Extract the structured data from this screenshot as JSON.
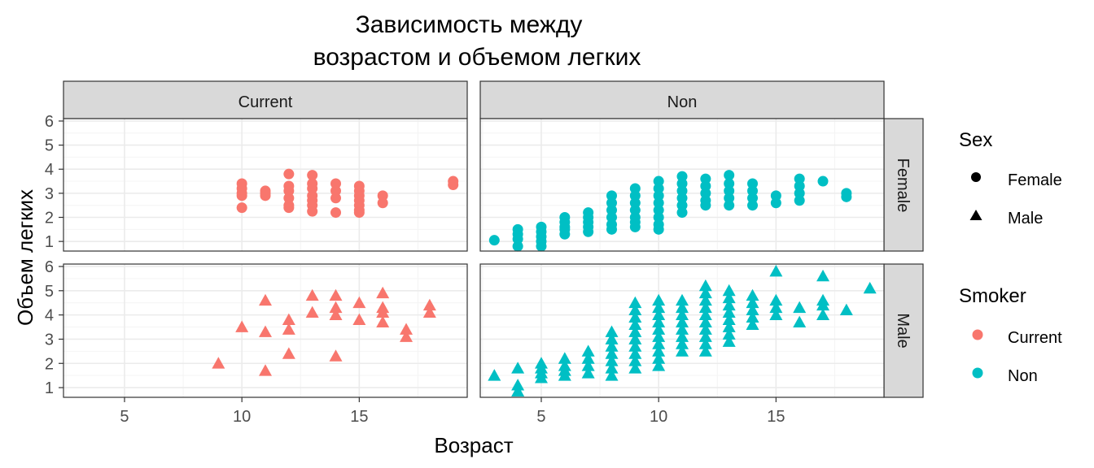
{
  "chart_data": {
    "type": "scatter",
    "title_lines": [
      "Зависимость между",
      "возрастом и объемом легких"
    ],
    "xlabel": "Возраст",
    "ylabel": "Объем легких",
    "xlim": [
      2.4,
      19.6
    ],
    "ylim": [
      0.6,
      6.1
    ],
    "x_ticks": [
      5,
      10,
      15
    ],
    "y_ticks": [
      1,
      2,
      3,
      4,
      5,
      6
    ],
    "grid": true,
    "facet_cols": [
      "Current",
      "Non"
    ],
    "facet_rows": [
      "Female",
      "Male"
    ],
    "legend_position": "right",
    "legends": {
      "sex": {
        "title": "Sex",
        "entries": [
          {
            "label": "Female",
            "shape": "circle"
          },
          {
            "label": "Male",
            "shape": "triangle"
          }
        ]
      },
      "smoker": {
        "title": "Smoker",
        "entries": [
          {
            "label": "Current",
            "color": "#F8766D"
          },
          {
            "label": "Non",
            "color": "#00BFC4"
          }
        ]
      }
    },
    "colors": {
      "Current": "#F8766D",
      "Non": "#00BFC4",
      "strip_bg": "#D9D9D9",
      "panel_border": "#333333",
      "grid_major": "#EBEBEB"
    },
    "series": [
      {
        "smoker": "Current",
        "sex": "Female",
        "points": [
          [
            10,
            3.4
          ],
          [
            10,
            3.2
          ],
          [
            10,
            3.0
          ],
          [
            10,
            2.9
          ],
          [
            10,
            2.4
          ],
          [
            11,
            3.1
          ],
          [
            11,
            3.0
          ],
          [
            11,
            2.9
          ],
          [
            12,
            3.8
          ],
          [
            12,
            3.3
          ],
          [
            12,
            3.1
          ],
          [
            12,
            2.8
          ],
          [
            12,
            2.5
          ],
          [
            12,
            2.4
          ],
          [
            13,
            3.75
          ],
          [
            13,
            3.4
          ],
          [
            13,
            3.2
          ],
          [
            13,
            2.9
          ],
          [
            13,
            2.7
          ],
          [
            13,
            2.5
          ],
          [
            13,
            2.25
          ],
          [
            14,
            3.4
          ],
          [
            14,
            3.1
          ],
          [
            14,
            2.8
          ],
          [
            14,
            2.2
          ],
          [
            15,
            3.3
          ],
          [
            15,
            3.1
          ],
          [
            15,
            2.9
          ],
          [
            15,
            2.7
          ],
          [
            15,
            2.5
          ],
          [
            15,
            2.3
          ],
          [
            15,
            2.2
          ],
          [
            16,
            2.9
          ],
          [
            16,
            2.6
          ],
          [
            19,
            3.5
          ],
          [
            19,
            3.35
          ]
        ]
      },
      {
        "smoker": "Current",
        "sex": "Male",
        "points": [
          [
            9,
            2.0
          ],
          [
            10,
            3.5
          ],
          [
            11,
            4.6
          ],
          [
            11,
            3.3
          ],
          [
            11,
            1.7
          ],
          [
            12,
            3.8
          ],
          [
            12,
            3.4
          ],
          [
            12,
            2.4
          ],
          [
            13,
            4.8
          ],
          [
            13,
            4.1
          ],
          [
            14,
            4.8
          ],
          [
            14,
            4.3
          ],
          [
            14,
            4.0
          ],
          [
            14,
            2.3
          ],
          [
            15,
            4.5
          ],
          [
            15,
            3.8
          ],
          [
            16,
            4.9
          ],
          [
            16,
            4.3
          ],
          [
            16,
            4.1
          ],
          [
            16,
            3.7
          ],
          [
            17,
            3.4
          ],
          [
            17,
            3.1
          ],
          [
            18,
            4.4
          ],
          [
            18,
            4.1
          ]
        ]
      },
      {
        "smoker": "Non",
        "sex": "Female",
        "points": [
          [
            3,
            1.05
          ],
          [
            4,
            1.5
          ],
          [
            4,
            1.3
          ],
          [
            4,
            1.1
          ],
          [
            4,
            0.8
          ],
          [
            5,
            1.6
          ],
          [
            5,
            1.4
          ],
          [
            5,
            1.2
          ],
          [
            5,
            1.0
          ],
          [
            5,
            0.8
          ],
          [
            6,
            2.0
          ],
          [
            6,
            1.8
          ],
          [
            6,
            1.6
          ],
          [
            6,
            1.5
          ],
          [
            6,
            1.3
          ],
          [
            7,
            2.2
          ],
          [
            7,
            2.0
          ],
          [
            7,
            1.8
          ],
          [
            7,
            1.6
          ],
          [
            7,
            1.4
          ],
          [
            8,
            2.9
          ],
          [
            8,
            2.6
          ],
          [
            8,
            2.3
          ],
          [
            8,
            2.0
          ],
          [
            8,
            1.7
          ],
          [
            8,
            1.5
          ],
          [
            9,
            3.2
          ],
          [
            9,
            2.9
          ],
          [
            9,
            2.6
          ],
          [
            9,
            2.3
          ],
          [
            9,
            2.0
          ],
          [
            9,
            1.8
          ],
          [
            9,
            1.6
          ],
          [
            10,
            3.5
          ],
          [
            10,
            3.2
          ],
          [
            10,
            2.9
          ],
          [
            10,
            2.6
          ],
          [
            10,
            2.3
          ],
          [
            10,
            2.0
          ],
          [
            10,
            1.7
          ],
          [
            10,
            1.5
          ],
          [
            11,
            3.7
          ],
          [
            11,
            3.4
          ],
          [
            11,
            3.1
          ],
          [
            11,
            2.8
          ],
          [
            11,
            2.5
          ],
          [
            11,
            2.2
          ],
          [
            12,
            3.6
          ],
          [
            12,
            3.3
          ],
          [
            12,
            3.0
          ],
          [
            12,
            2.7
          ],
          [
            12,
            2.5
          ],
          [
            13,
            3.75
          ],
          [
            13,
            3.4
          ],
          [
            13,
            3.1
          ],
          [
            13,
            2.8
          ],
          [
            13,
            2.5
          ],
          [
            14,
            3.4
          ],
          [
            14,
            3.1
          ],
          [
            14,
            2.8
          ],
          [
            14,
            2.5
          ],
          [
            15,
            2.9
          ],
          [
            15,
            2.6
          ],
          [
            16,
            3.6
          ],
          [
            16,
            3.3
          ],
          [
            16,
            3.0
          ],
          [
            16,
            2.7
          ],
          [
            17,
            3.5
          ],
          [
            18,
            3.0
          ],
          [
            18,
            2.85
          ]
        ]
      },
      {
        "smoker": "Non",
        "sex": "Male",
        "points": [
          [
            3,
            1.5
          ],
          [
            4,
            1.8
          ],
          [
            4,
            1.1
          ],
          [
            4,
            0.85
          ],
          [
            5,
            2.0
          ],
          [
            5,
            1.8
          ],
          [
            5,
            1.6
          ],
          [
            5,
            1.4
          ],
          [
            6,
            2.2
          ],
          [
            6,
            1.9
          ],
          [
            6,
            1.7
          ],
          [
            6,
            1.5
          ],
          [
            7,
            2.5
          ],
          [
            7,
            2.2
          ],
          [
            7,
            1.9
          ],
          [
            7,
            1.6
          ],
          [
            8,
            3.3
          ],
          [
            8,
            3.0
          ],
          [
            8,
            2.7
          ],
          [
            8,
            2.4
          ],
          [
            8,
            2.1
          ],
          [
            8,
            1.8
          ],
          [
            8,
            1.5
          ],
          [
            9,
            4.5
          ],
          [
            9,
            4.2
          ],
          [
            9,
            3.9
          ],
          [
            9,
            3.6
          ],
          [
            9,
            3.3
          ],
          [
            9,
            3.0
          ],
          [
            9,
            2.7
          ],
          [
            9,
            2.4
          ],
          [
            9,
            2.1
          ],
          [
            9,
            1.8
          ],
          [
            10,
            4.6
          ],
          [
            10,
            4.3
          ],
          [
            10,
            4.0
          ],
          [
            10,
            3.7
          ],
          [
            10,
            3.4
          ],
          [
            10,
            3.1
          ],
          [
            10,
            2.8
          ],
          [
            10,
            2.5
          ],
          [
            10,
            2.2
          ],
          [
            10,
            1.9
          ],
          [
            11,
            4.6
          ],
          [
            11,
            4.3
          ],
          [
            11,
            4.0
          ],
          [
            11,
            3.7
          ],
          [
            11,
            3.4
          ],
          [
            11,
            3.1
          ],
          [
            11,
            2.8
          ],
          [
            11,
            2.5
          ],
          [
            12,
            5.2
          ],
          [
            12,
            4.9
          ],
          [
            12,
            4.6
          ],
          [
            12,
            4.3
          ],
          [
            12,
            4.0
          ],
          [
            12,
            3.7
          ],
          [
            12,
            3.4
          ],
          [
            12,
            3.1
          ],
          [
            12,
            2.8
          ],
          [
            12,
            2.5
          ],
          [
            13,
            5.0
          ],
          [
            13,
            4.7
          ],
          [
            13,
            4.4
          ],
          [
            13,
            4.1
          ],
          [
            13,
            3.8
          ],
          [
            13,
            3.5
          ],
          [
            13,
            3.2
          ],
          [
            13,
            2.9
          ],
          [
            14,
            4.8
          ],
          [
            14,
            4.5
          ],
          [
            14,
            4.2
          ],
          [
            14,
            3.9
          ],
          [
            14,
            3.6
          ],
          [
            15,
            5.8
          ],
          [
            15,
            4.6
          ],
          [
            15,
            4.3
          ],
          [
            15,
            4.0
          ],
          [
            16,
            4.3
          ],
          [
            16,
            3.7
          ],
          [
            17,
            5.6
          ],
          [
            17,
            4.6
          ],
          [
            17,
            4.4
          ],
          [
            17,
            4.0
          ],
          [
            18,
            4.2
          ],
          [
            19,
            5.1
          ]
        ]
      }
    ]
  }
}
